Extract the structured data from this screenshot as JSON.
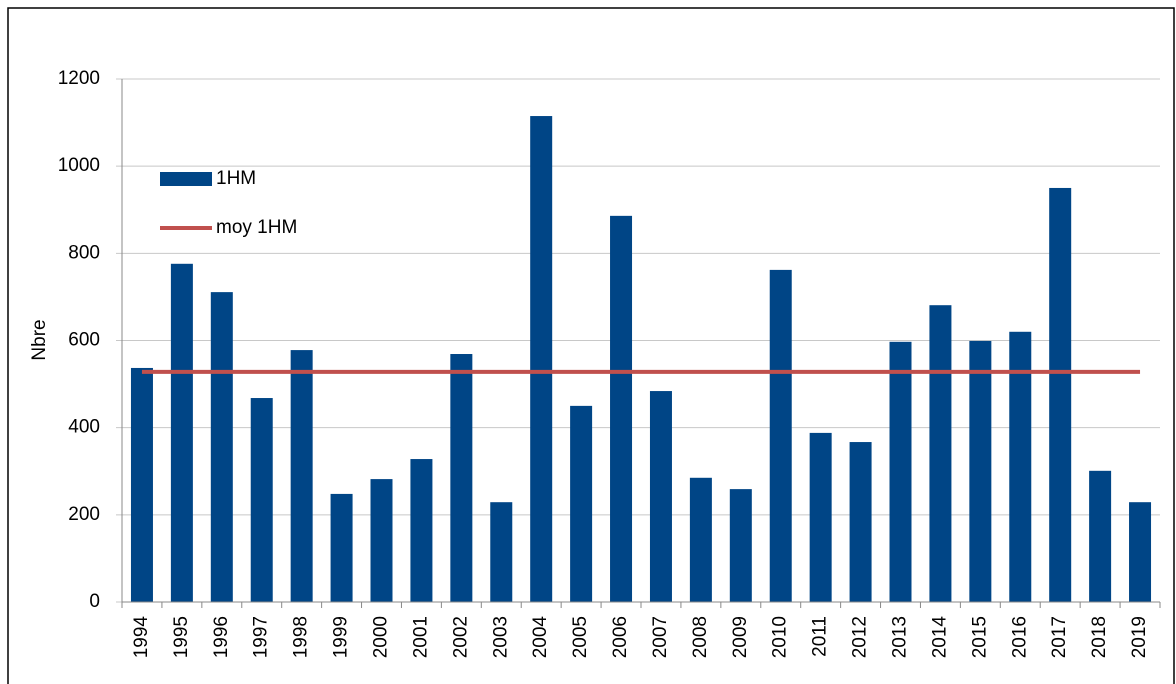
{
  "chart_data": {
    "type": "bar",
    "y_label": "Nbre",
    "categories": [
      "1994",
      "1995",
      "1996",
      "1997",
      "1998",
      "1999",
      "2000",
      "2001",
      "2002",
      "2003",
      "2004",
      "2005",
      "2006",
      "2007",
      "2008",
      "2009",
      "2010",
      "2011",
      "2012",
      "2013",
      "2014",
      "2015",
      "2016",
      "2017",
      "2018",
      "2019"
    ],
    "series": [
      {
        "name": "1HM",
        "type": "bar",
        "color": "#004586",
        "values": [
          537,
          776,
          711,
          468,
          578,
          248,
          282,
          328,
          569,
          229,
          1115,
          450,
          886,
          484,
          285,
          259,
          762,
          388,
          367,
          597,
          681,
          599,
          620,
          950,
          301,
          229
        ]
      },
      {
        "name": "moy 1HM",
        "type": "line",
        "color": "#c0504d",
        "values": [
          528,
          528,
          528,
          528,
          528,
          528,
          528,
          528,
          528,
          528,
          528,
          528,
          528,
          528,
          528,
          528,
          528,
          528,
          528,
          528,
          528,
          528,
          528,
          528,
          528,
          528
        ]
      }
    ],
    "ylim": [
      0,
      1200
    ],
    "yticks": [
      0,
      200,
      400,
      600,
      800,
      1000,
      1200
    ],
    "grid": true,
    "legend": "top-left"
  }
}
